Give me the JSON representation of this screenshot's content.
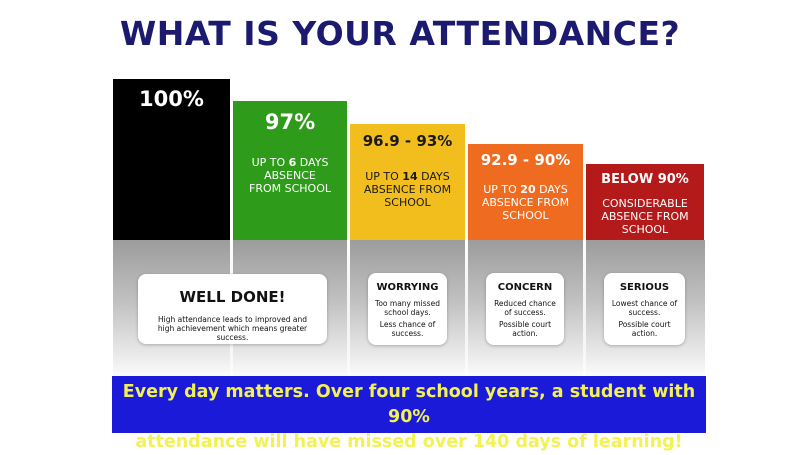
{
  "title": {
    "part1": "WHAT IS ",
    "emphasis": "YOUR",
    "part2": " ATTENDANCE?"
  },
  "levels": [
    {
      "percent": "100%",
      "color": "#000000"
    },
    {
      "percent": "97%",
      "description_pre": "UP TO ",
      "description_num": "6",
      "description_post": " DAYS ABSENCE FROM SCHOOL",
      "color": "#2e9c1a"
    },
    {
      "percent": "96.9 - 93%",
      "description_pre": "UP TO ",
      "description_num": "14",
      "description_post": " DAYS ABSENCE FROM SCHOOL",
      "color": "#f2be1e",
      "text_color": "#1a1a1a"
    },
    {
      "percent": "92.9 - 90%",
      "description_pre": "UP TO ",
      "description_num": "20",
      "description_post": " DAYS ABSENCE FROM SCHOOL",
      "color": "#ef6b1f"
    },
    {
      "percent": "BELOW 90%",
      "description": "CONSIDERABLE ABSENCE FROM SCHOOL",
      "color": "#b51a1a"
    }
  ],
  "cards": [
    {
      "heading": "WELL DONE!",
      "text": "High attendance leads to improved and high achievement which means greater success."
    },
    {
      "heading": "WORRYING",
      "text1": "Too many missed school days.",
      "text2": "Less chance of success."
    },
    {
      "heading": "CONCERN",
      "text1": "Reduced chance of success.",
      "text2": "Possible court action."
    },
    {
      "heading": "SERIOUS",
      "text1": "Lowest chance of success.",
      "text2": "Possible court action."
    }
  ],
  "banner": {
    "line1": "Every day matters. Over four school years, a student with 90%",
    "line2": "attendance will have missed over 140 days of learning!",
    "background": "#1b1ad8",
    "text_color": "#f2f254"
  }
}
